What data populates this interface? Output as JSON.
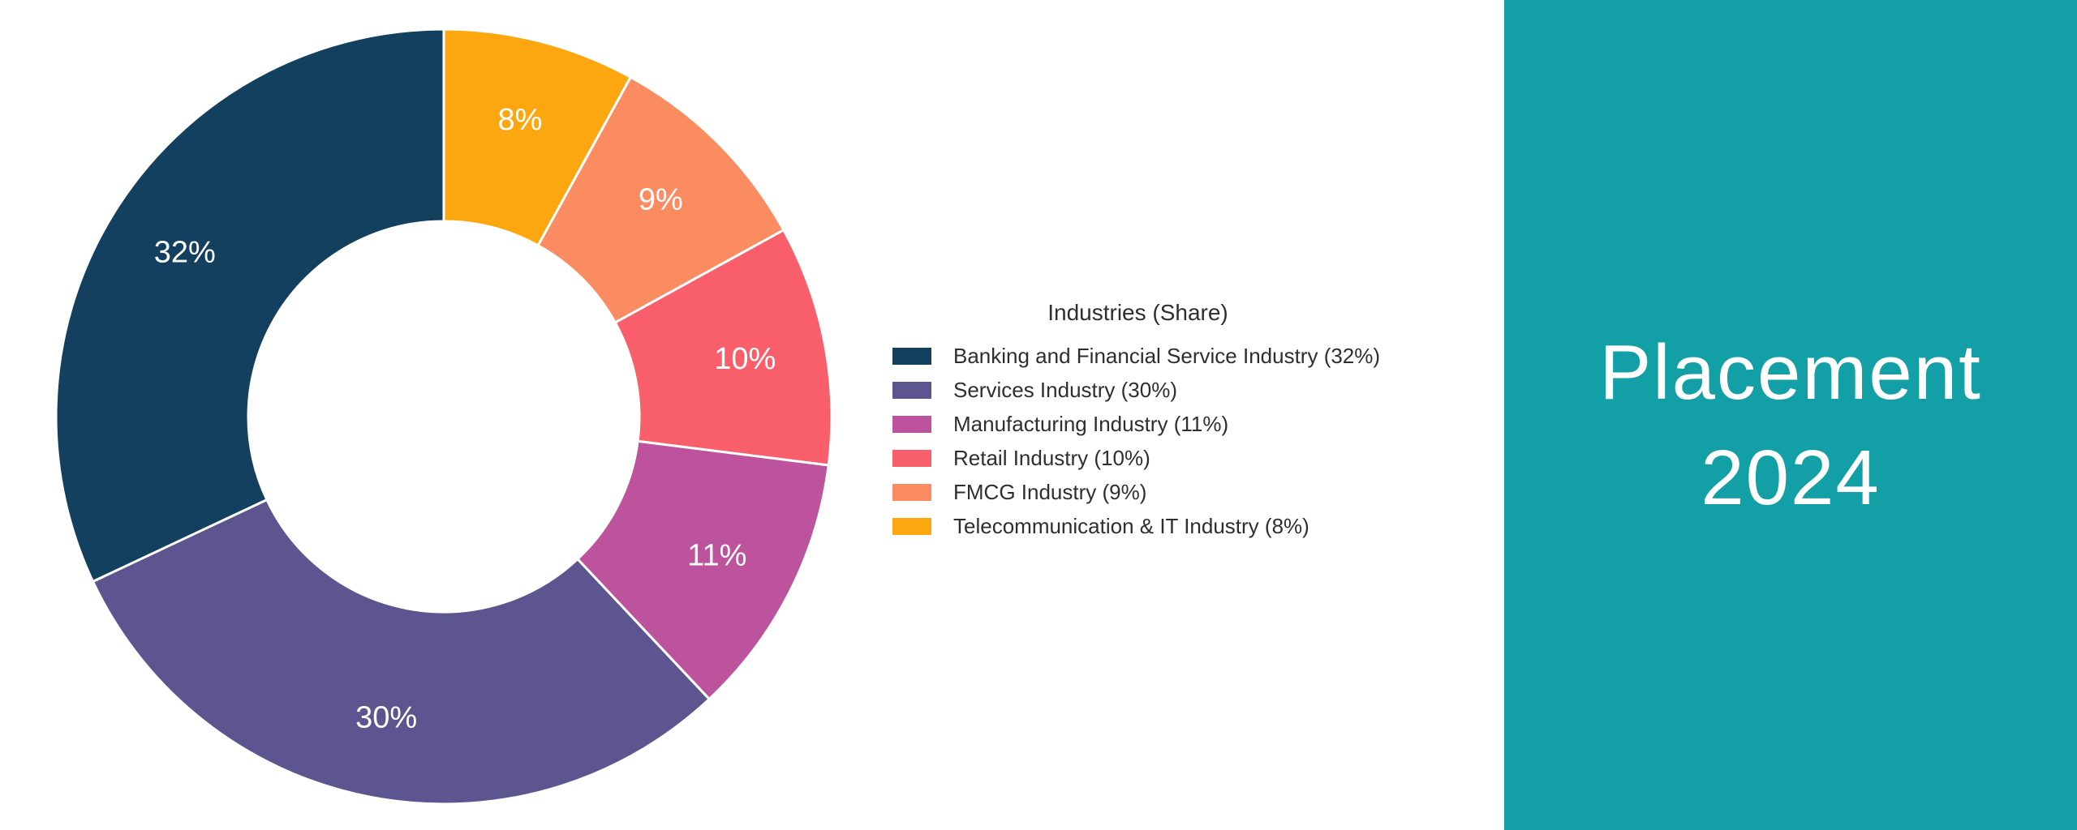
{
  "chart_data": {
    "type": "pie",
    "subtype": "donut",
    "title": "Industries (Share)",
    "legend_position": "right",
    "data_labels": "percent-inside-slices",
    "slices": [
      {
        "label": "Banking and Financial Service Industry",
        "value": 32,
        "data_label": "32%",
        "legend_label": "Banking and Financial Service Industry (32%)",
        "color": "#13405E"
      },
      {
        "label": "Services Industry",
        "value": 30,
        "data_label": "30%",
        "legend_label": "Services Industry (30%)",
        "color": "#5D5590"
      },
      {
        "label": "Manufacturing Industry",
        "value": 11,
        "data_label": "11%",
        "legend_label": "Manufacturing Industry (11%)",
        "color": "#BC539C"
      },
      {
        "label": "Retail Industry",
        "value": 10,
        "data_label": "10%",
        "legend_label": "Retail Industry (10%)",
        "color": "#F95F6B"
      },
      {
        "label": "FMCG Industry",
        "value": 9,
        "data_label": "9%",
        "legend_label": "FMCG Industry (9%)",
        "color": "#FB8C61"
      },
      {
        "label": "Telecommunication & IT Industry",
        "value": 8,
        "data_label": "8%",
        "legend_label": "Telecommunication & IT Industry (8%)",
        "color": "#FCA70F"
      }
    ],
    "slice_label_color": "#FFFFFF",
    "slice_border_color": "#FFFFFF",
    "legend_text_color": "#2E2E2E"
  },
  "title_panel": {
    "line1": "Placement",
    "line2": "2024",
    "background_color": "#12A0A6",
    "text_color": "#FFFFFF"
  }
}
